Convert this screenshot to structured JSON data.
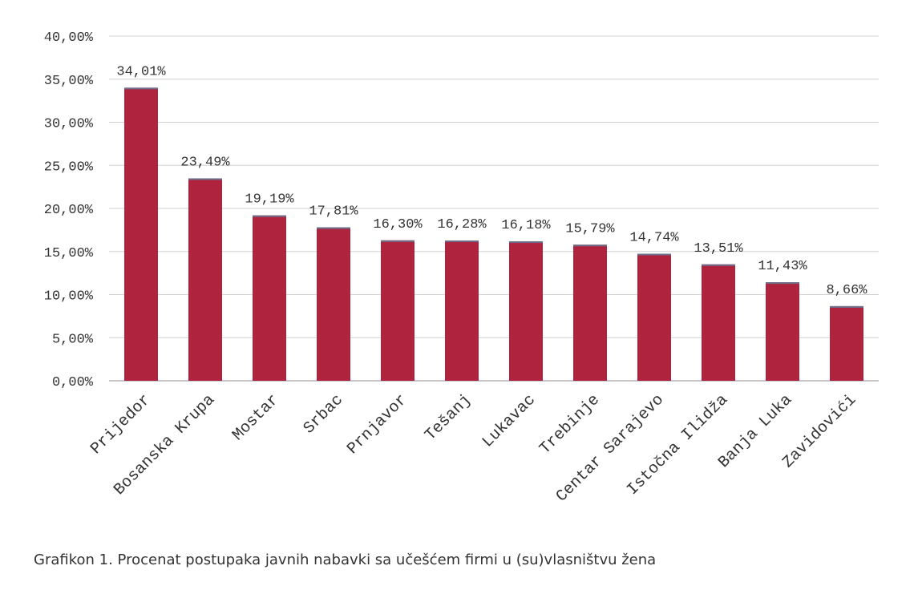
{
  "caption": "Grafikon 1. Procenat postupaka javnih nabavki sa učešćem firmi u (su)vlasništvu žena",
  "chart_data": {
    "type": "bar",
    "categories": [
      "Prijedor",
      "Bosanska Krupa",
      "Mostar",
      "Srbac",
      "Prnjavor",
      "Tešanj",
      "Lukavac",
      "Trebinje",
      "Centar Sarajevo",
      "Istočna Ilidža",
      "Banja Luka",
      "Zavidovići"
    ],
    "values": [
      34.01,
      23.49,
      19.19,
      17.81,
      16.3,
      16.28,
      16.18,
      15.79,
      14.74,
      13.51,
      11.43,
      8.66
    ],
    "data_labels": [
      "34,01%",
      "23,49%",
      "19,19%",
      "17,81%",
      "16,30%",
      "16,28%",
      "16,18%",
      "15,79%",
      "14,74%",
      "13,51%",
      "11,43%",
      "8,66%"
    ],
    "yticks": [
      0,
      5,
      10,
      15,
      20,
      25,
      30,
      35,
      40
    ],
    "ytick_labels": [
      "0,00%",
      "5,00%",
      "10,00%",
      "15,00%",
      "20,00%",
      "25,00%",
      "30,00%",
      "35,00%",
      "40,00%"
    ],
    "ylim": [
      0,
      40
    ],
    "grid": true,
    "legend": "none",
    "bar_color": "#b0233f",
    "bar_top_color": "#6b6f8a"
  }
}
